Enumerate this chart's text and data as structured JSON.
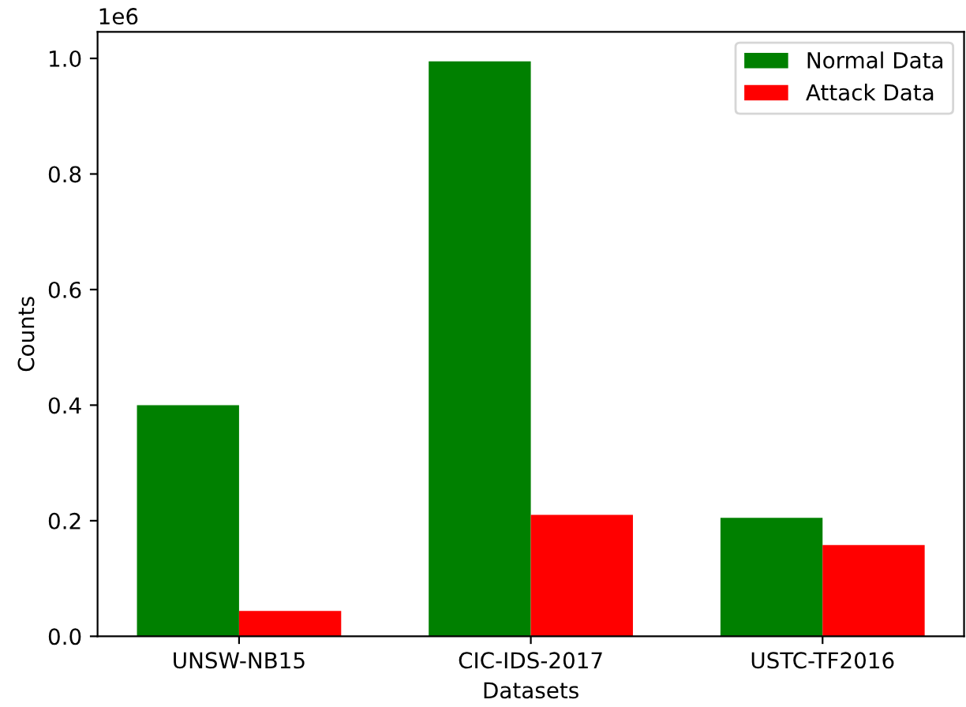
{
  "chart_data": {
    "type": "bar",
    "xlabel": "Datasets",
    "ylabel": "Counts",
    "categories": [
      "UNSW-NB15",
      "CIC-IDS-2017",
      "USTC-TF2016"
    ],
    "series": [
      {
        "name": "Normal Data",
        "color": "#008000",
        "values": [
          0.4,
          0.995,
          0.205
        ]
      },
      {
        "name": "Attack Data",
        "color": "#ff0000",
        "values": [
          0.044,
          0.21,
          0.158
        ]
      }
    ],
    "ylim": [
      0,
      1.046
    ],
    "yticks": [
      {
        "value": 0,
        "label": "0.0"
      },
      0.2,
      0.4,
      0.6,
      0.8,
      {
        "value": 1,
        "label": "1.0"
      }
    ],
    "annotations": [
      "1e6"
    ],
    "legend": "top right",
    "grid": false
  }
}
